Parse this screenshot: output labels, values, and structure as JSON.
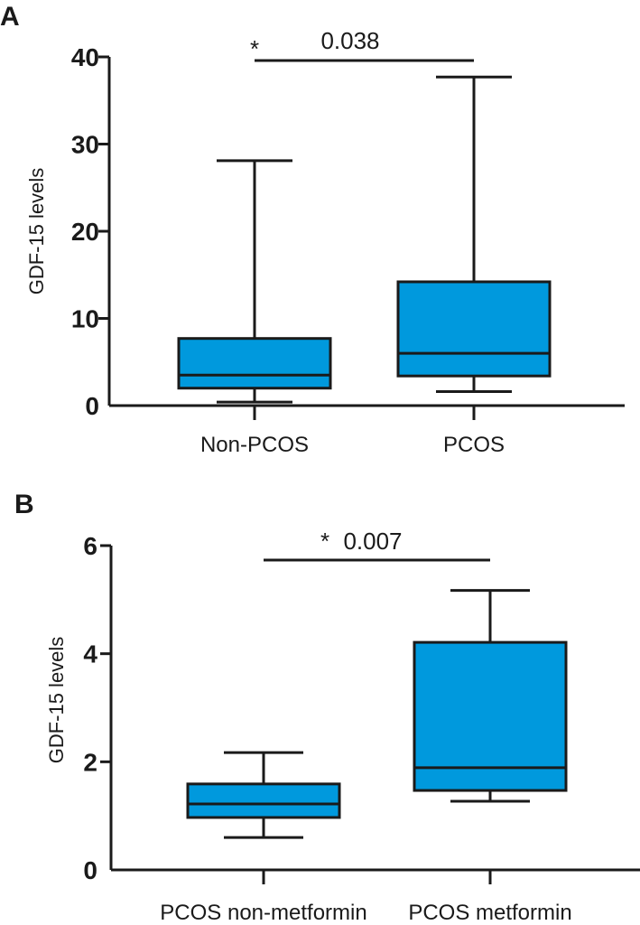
{
  "colors": {
    "box_fill": "#0099dd",
    "stroke": "#1a1a1a"
  },
  "chart_data": [
    {
      "type": "boxplot",
      "panel": "A",
      "title": "",
      "xlabel": "",
      "ylabel": "GDF-15 levels",
      "ylim": [
        0,
        40
      ],
      "yticks": [
        0,
        10,
        20,
        30,
        40
      ],
      "ytick_labels": [
        "0",
        "10",
        "20",
        "30",
        "40"
      ],
      "grid": false,
      "categories": [
        "Non-PCOS",
        "PCOS"
      ],
      "boxes": [
        {
          "name": "Non-PCOS",
          "min": 0.4,
          "q1": 2.0,
          "median": 3.5,
          "q3": 7.7,
          "max": 28.1
        },
        {
          "name": "PCOS",
          "min": 1.6,
          "q1": 3.4,
          "median": 6.0,
          "q3": 14.2,
          "max": 37.7
        }
      ],
      "annotation": {
        "from": 0,
        "to": 1,
        "star": "*",
        "p_value": "0.038"
      }
    },
    {
      "type": "boxplot",
      "panel": "B",
      "title": "",
      "xlabel": "",
      "ylabel": "GDF-15 levels",
      "ylim": [
        0,
        6
      ],
      "yticks": [
        0,
        2,
        4,
        6
      ],
      "ytick_labels": [
        "0",
        "2",
        "4",
        "6"
      ],
      "grid": false,
      "categories": [
        "PCOS non-metformin",
        "PCOS metformin"
      ],
      "boxes": [
        {
          "name": "PCOS non-metformin",
          "min": 0.6,
          "q1": 0.97,
          "median": 1.22,
          "q3": 1.59,
          "max": 2.17
        },
        {
          "name": "PCOS metformin",
          "min": 1.27,
          "q1": 1.47,
          "median": 1.89,
          "q3": 4.21,
          "max": 5.17
        }
      ],
      "annotation": {
        "from": 0,
        "to": 1,
        "star": "*",
        "p_value": "0.007"
      }
    }
  ]
}
